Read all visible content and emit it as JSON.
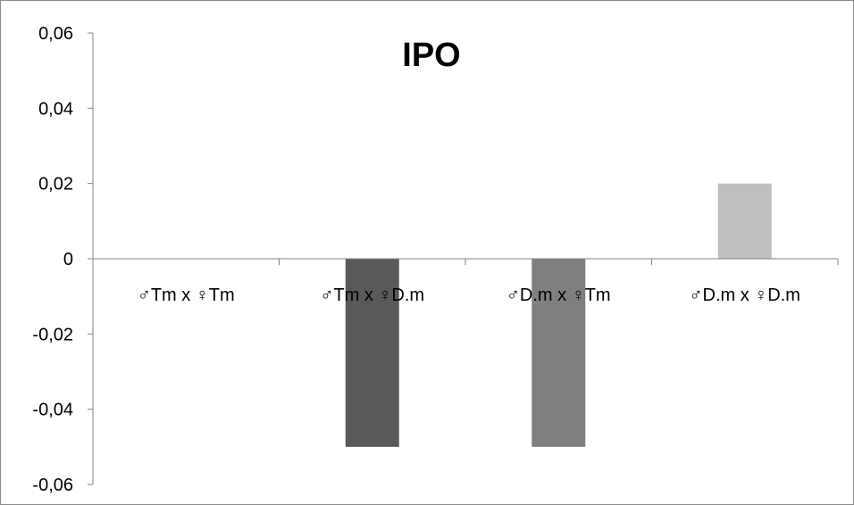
{
  "chart_data": {
    "type": "bar",
    "title": "IPO",
    "categories": [
      "♂Tm x ♀Tm",
      "♂Tm x ♀D.m",
      "♂D.m x ♀Tm",
      "♂D.m x ♀D.m"
    ],
    "values": [
      0,
      -0.05,
      -0.05,
      0.02
    ],
    "bar_colors": [
      "#404040",
      "#595959",
      "#7f7f7f",
      "#bfbfbf"
    ],
    "ylim": [
      -0.06,
      0.06
    ],
    "yticks": [
      0.06,
      0.04,
      0.02,
      0,
      -0.02,
      -0.04,
      -0.06
    ],
    "ytick_labels": [
      "0,06",
      "0,04",
      "0,02",
      "0",
      "-0,02",
      "-0,04",
      "-0,06"
    ],
    "grid": false,
    "legend": "none"
  }
}
